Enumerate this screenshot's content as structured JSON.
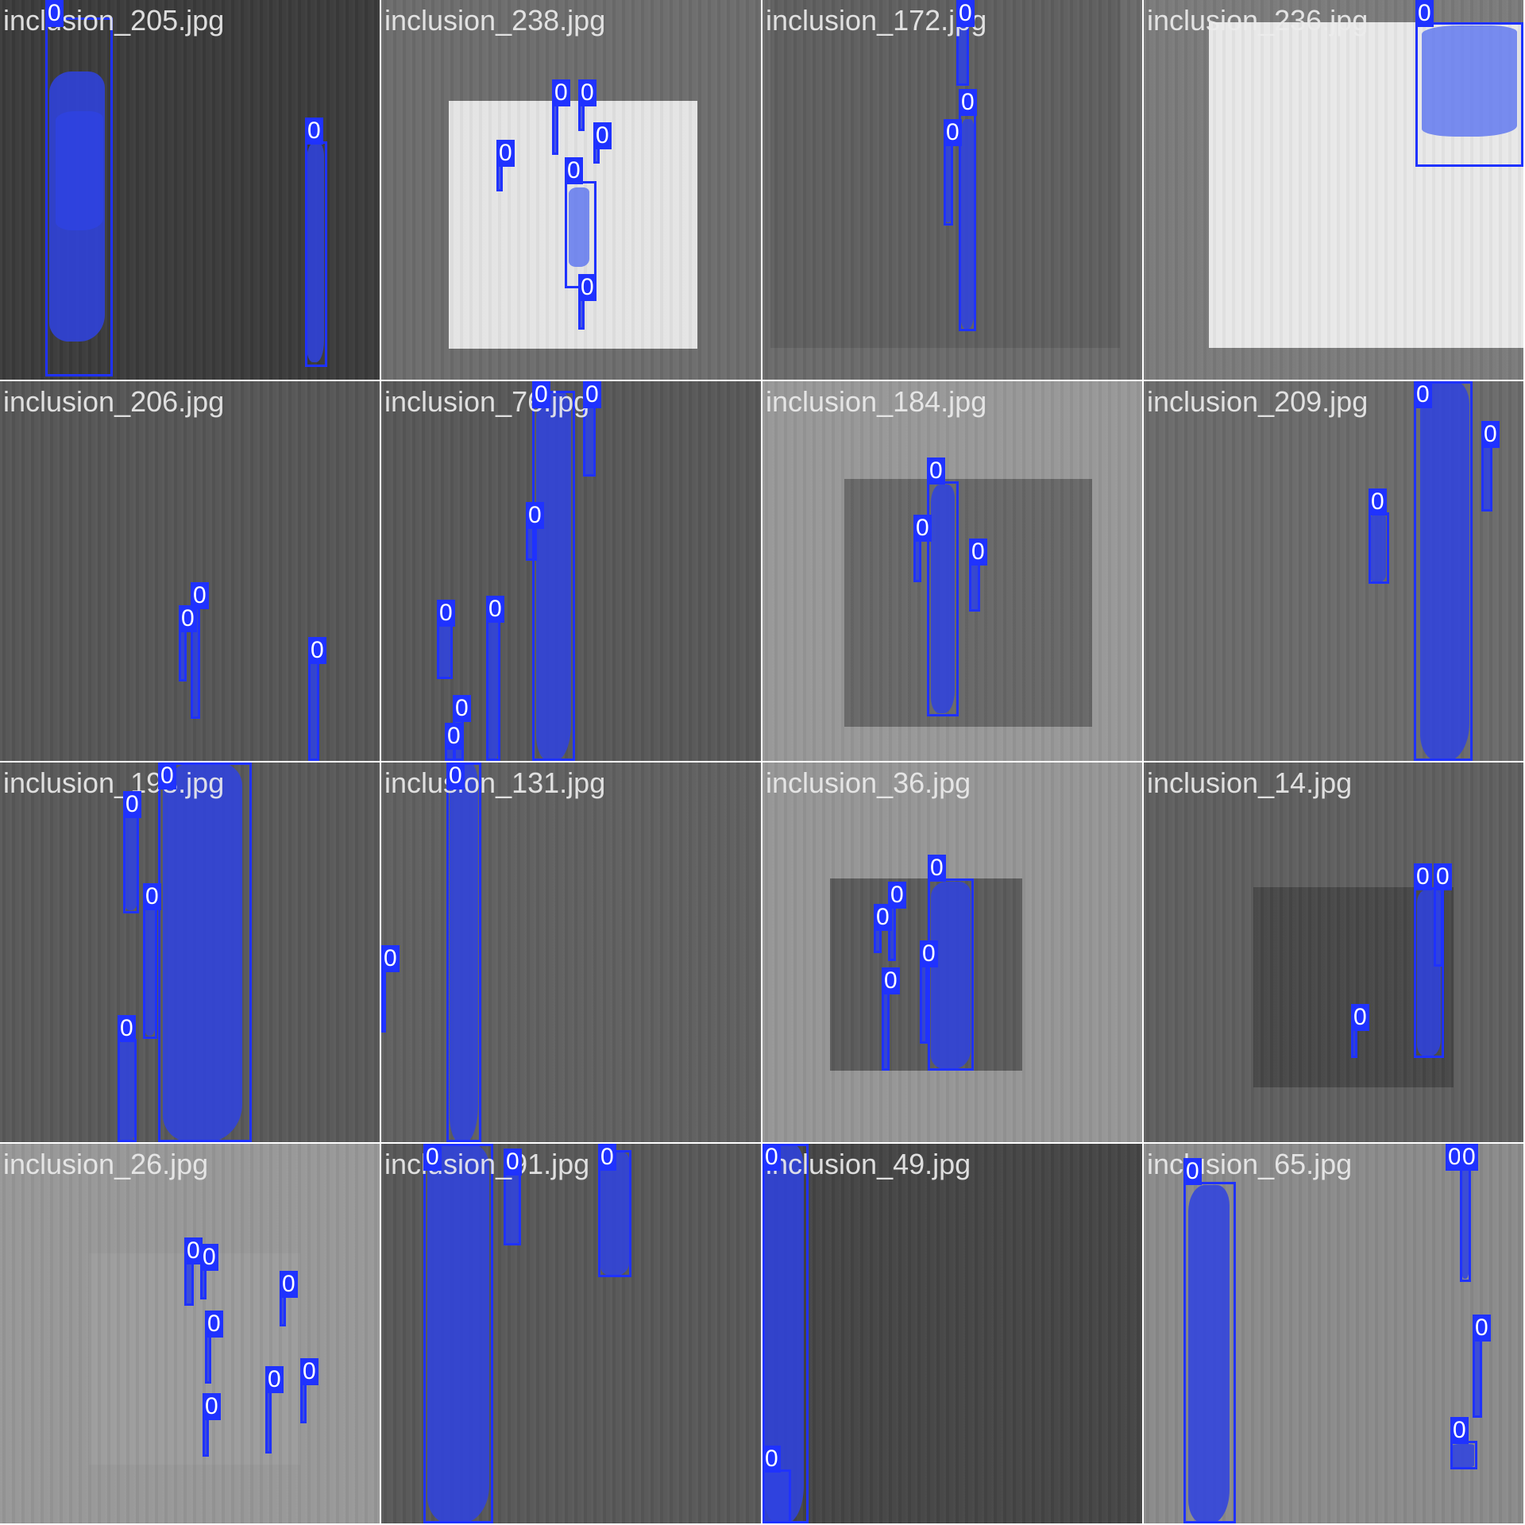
{
  "tiles": [
    {
      "name": "inclusion_205.jpg",
      "bg": "#3a3a3a",
      "inner": null,
      "dets": [
        {
          "label": "0",
          "b": [
            57,
            22,
            85,
            452
          ],
          "m": [
            [
              62,
              90,
              70,
              340
            ],
            [
              70,
              140,
              60,
              150
            ]
          ]
        },
        {
          "label": "0",
          "b": [
            384,
            178,
            28,
            284
          ],
          "m": [
            [
              386,
              180,
              22,
              276
            ]
          ]
        }
      ]
    },
    {
      "name": "inclusion_238.jpg",
      "bg": "#6c6c6c",
      "inner": {
        "r": [
          85,
          127,
          313,
          312
        ],
        "c": "#e4e4e4"
      },
      "dets": [
        {
          "label": "0",
          "b": [
            215,
            130,
            8,
            65
          ],
          "m": [
            [
              215,
              130,
              7,
              65
            ]
          ]
        },
        {
          "label": "0",
          "b": [
            248,
            130,
            8,
            35
          ],
          "m": [
            [
              248,
              130,
              7,
              35
            ]
          ]
        },
        {
          "label": "0",
          "b": [
            145,
            206,
            8,
            35
          ],
          "m": [
            [
              145,
              206,
              7,
              35
            ]
          ]
        },
        {
          "label": "0",
          "b": [
            267,
            184,
            8,
            22
          ],
          "m": [
            [
              267,
              184,
              7,
              22
            ]
          ]
        },
        {
          "label": "0",
          "b": [
            231,
            228,
            40,
            135
          ],
          "m": [
            [
              236,
              236,
              26,
              100
            ]
          ],
          "light": true
        },
        {
          "label": "0",
          "b": [
            248,
            375,
            8,
            40
          ],
          "m": [
            [
              248,
              375,
              6,
              40
            ]
          ]
        }
      ]
    },
    {
      "name": "inclusion_172.jpg",
      "bg": "#6a6a6a",
      "inner": {
        "r": [
          10,
          0,
          440,
          438
        ],
        "c": "#5e5e5e"
      },
      "dets": [
        {
          "label": "0",
          "b": [
            244,
            26,
            16,
            82
          ],
          "m": [
            [
              246,
              26,
              12,
              82
            ]
          ]
        },
        {
          "label": "0",
          "b": [
            247,
            142,
            22,
            275
          ],
          "m": [
            [
              249,
              150,
              18,
              264
            ]
          ]
        },
        {
          "label": "0",
          "b": [
            228,
            180,
            12,
            104
          ],
          "m": [
            [
              230,
              180,
              8,
              100
            ]
          ]
        }
      ]
    },
    {
      "name": "inclusion_236.jpg",
      "bg": "#7a7a7a",
      "inner": {
        "r": [
          82,
          28,
          396,
          410
        ],
        "c": "#e8e8e8"
      },
      "dets": [
        {
          "label": "0",
          "b": [
            342,
            28,
            136,
            182
          ],
          "m": [
            [
              350,
              32,
              120,
              140
            ]
          ],
          "light": true
        }
      ]
    },
    {
      "name": "inclusion_206.jpg",
      "bg": "#555555",
      "inner": null,
      "dets": [
        {
          "label": "0",
          "b": [
            240,
            283,
            12,
            142
          ],
          "m": [
            [
              242,
              285,
              8,
              140
            ]
          ]
        },
        {
          "label": "0",
          "b": [
            225,
            312,
            10,
            66
          ],
          "m": [
            [
              227,
              312,
              6,
              64
            ]
          ]
        },
        {
          "label": "0",
          "b": [
            388,
            352,
            14,
            126
          ],
          "m": [
            [
              390,
              352,
              10,
              126
            ]
          ]
        }
      ]
    },
    {
      "name": "inclusion_76.jpg",
      "bg": "#575757",
      "inner": null,
      "dets": [
        {
          "label": "0",
          "b": [
            190,
            12,
            54,
            466
          ],
          "m": [
            [
              195,
              12,
              44,
              466
            ]
          ]
        },
        {
          "label": "0",
          "b": [
            254,
            20,
            16,
            100
          ],
          "m": [
            [
              256,
              20,
              12,
              100
            ]
          ]
        },
        {
          "label": "0",
          "b": [
            182,
            182,
            14,
            44
          ],
          "m": [
            [
              184,
              182,
              10,
              44
            ]
          ]
        },
        {
          "label": "0",
          "b": [
            70,
            305,
            20,
            70
          ],
          "m": [
            [
              72,
              307,
              16,
              66
            ]
          ]
        },
        {
          "label": "0",
          "b": [
            132,
            300,
            18,
            178
          ],
          "m": [
            [
              134,
              300,
              14,
              178
            ]
          ]
        },
        {
          "label": "0",
          "b": [
            90,
            425,
            14,
            53
          ],
          "m": [
            [
              92,
              425,
              10,
              53
            ]
          ]
        },
        {
          "label": "0",
          "b": [
            80,
            460,
            14,
            18
          ],
          "m": [
            [
              82,
              460,
              10,
              18
            ]
          ]
        }
      ]
    },
    {
      "name": "inclusion_184.jpg",
      "bg": "#979797",
      "inner": {
        "r": [
          103,
          123,
          312,
          312
        ],
        "c": "#676767"
      },
      "dets": [
        {
          "label": "0",
          "b": [
            207,
            126,
            40,
            296
          ],
          "m": [
            [
              212,
              130,
              30,
              288
            ]
          ]
        },
        {
          "label": "0",
          "b": [
            190,
            198,
            10,
            55
          ],
          "m": [
            [
              192,
              198,
              6,
              55
            ]
          ]
        },
        {
          "label": "0",
          "b": [
            260,
            228,
            14,
            62
          ],
          "m": [
            [
              262,
              228,
              10,
              62
            ]
          ]
        }
      ]
    },
    {
      "name": "inclusion_209.jpg",
      "bg": "#6a6a6a",
      "inner": null,
      "dets": [
        {
          "label": "0",
          "b": [
            340,
            0,
            74,
            478
          ],
          "m": [
            [
              348,
              0,
              62,
              478
            ]
          ]
        },
        {
          "label": "0",
          "b": [
            425,
            80,
            14,
            84
          ],
          "m": [
            [
              427,
              80,
              10,
              84
            ]
          ]
        },
        {
          "label": "0",
          "b": [
            283,
            165,
            26,
            90
          ],
          "m": [
            [
              285,
              167,
              20,
              86
            ]
          ]
        }
      ]
    },
    {
      "name": "inclusion_198.jpg",
      "bg": "#585858",
      "inner": null,
      "dets": [
        {
          "label": "0",
          "b": [
            199,
            0,
            118,
            478
          ],
          "m": [
            [
              205,
              0,
              100,
              478
            ]
          ]
        },
        {
          "label": "0",
          "b": [
            155,
            66,
            20,
            124
          ],
          "m": [
            [
              157,
              66,
              16,
              120
            ]
          ]
        },
        {
          "label": "0",
          "b": [
            180,
            182,
            18,
            166
          ],
          "m": [
            [
              182,
              182,
              14,
              162
            ]
          ]
        },
        {
          "label": "0",
          "b": [
            148,
            348,
            24,
            130
          ],
          "m": [
            [
              150,
              348,
              20,
              130
            ]
          ]
        }
      ]
    },
    {
      "name": "inclusion_131.jpg",
      "bg": "#5f5f5f",
      "inner": null,
      "dets": [
        {
          "label": "0",
          "b": [
            82,
            0,
            44,
            478
          ],
          "m": [
            [
              86,
              0,
              36,
              478
            ]
          ]
        },
        {
          "label": "0",
          "b": [
            0,
            260,
            4,
            80
          ],
          "m": [
            [
              0,
              260,
              4,
              80
            ]
          ]
        }
      ]
    },
    {
      "name": "inclusion_36.jpg",
      "bg": "#959595",
      "inner": {
        "r": [
          85,
          146,
          242,
          242
        ],
        "c": "#5a5a5a"
      },
      "dets": [
        {
          "label": "0",
          "b": [
            208,
            146,
            58,
            242
          ],
          "m": [
            [
              212,
              150,
              50,
              236
            ]
          ]
        },
        {
          "label": "0",
          "b": [
            158,
            180,
            10,
            70
          ],
          "m": [
            [
              160,
              180,
              6,
              70
            ]
          ]
        },
        {
          "label": "0",
          "b": [
            140,
            208,
            10,
            32
          ],
          "m": [
            [
              142,
              208,
              6,
              32
            ]
          ]
        },
        {
          "label": "0",
          "b": [
            198,
            254,
            10,
            100
          ],
          "m": [
            [
              200,
              254,
              6,
              100
            ]
          ]
        },
        {
          "label": "0",
          "b": [
            150,
            288,
            10,
            100
          ],
          "m": [
            [
              152,
              288,
              6,
              100
            ]
          ]
        }
      ]
    },
    {
      "name": "inclusion_14.jpg",
      "bg": "#5e5e5e",
      "inner": {
        "r": [
          138,
          157,
          252,
          252
        ],
        "c": "#474747"
      },
      "dets": [
        {
          "label": "0",
          "b": [
            340,
            157,
            38,
            215
          ],
          "m": [
            [
              344,
              160,
              30,
              210
            ]
          ]
        },
        {
          "label": "0",
          "b": [
            365,
            157,
            12,
            100
          ],
          "m": [
            [
              367,
              157,
              8,
              100
            ]
          ]
        },
        {
          "label": "0",
          "b": [
            261,
            334,
            8,
            38
          ],
          "m": [
            [
              262,
              334,
              6,
              38
            ]
          ]
        }
      ]
    },
    {
      "name": "inclusion_26.jpg",
      "bg": "#979797",
      "inner": {
        "r": [
          112,
          138,
          266,
          266
        ],
        "c": "#9c9c9c"
      },
      "dets": [
        {
          "label": "0",
          "b": [
            232,
            148,
            12,
            56
          ],
          "m": [
            [
              234,
              148,
              8,
              56
            ]
          ]
        },
        {
          "label": "0",
          "b": [
            252,
            156,
            8,
            40
          ],
          "m": [
            [
              253,
              156,
              6,
              40
            ]
          ]
        },
        {
          "label": "0",
          "b": [
            352,
            190,
            8,
            40
          ],
          "m": [
            [
              353,
              190,
              6,
              40
            ]
          ]
        },
        {
          "label": "0",
          "b": [
            258,
            240,
            8,
            62
          ],
          "m": [
            [
              259,
              240,
              6,
              62
            ]
          ]
        },
        {
          "label": "0",
          "b": [
            378,
            300,
            8,
            52
          ],
          "m": [
            [
              379,
              300,
              6,
              52
            ]
          ]
        },
        {
          "label": "0",
          "b": [
            334,
            310,
            8,
            80
          ],
          "m": [
            [
              335,
              310,
              6,
              80
            ]
          ]
        },
        {
          "label": "0",
          "b": [
            255,
            344,
            8,
            50
          ],
          "m": [
            [
              256,
              344,
              6,
              50
            ]
          ]
        }
      ]
    },
    {
      "name": "inclusion_91.jpg",
      "bg": "#575757",
      "inner": null,
      "dets": [
        {
          "label": "0",
          "b": [
            53,
            0,
            88,
            478
          ],
          "m": [
            [
              58,
              0,
              78,
              478
            ]
          ]
        },
        {
          "label": "0",
          "b": [
            154,
            36,
            22,
            92
          ],
          "m": [
            [
              156,
              36,
              18,
              92
            ]
          ]
        },
        {
          "label": "0",
          "b": [
            273,
            8,
            42,
            160
          ],
          "m": [
            [
              276,
              10,
              36,
              156
            ]
          ]
        }
      ]
    },
    {
      "name": "inclusion_49.jpg",
      "bg": "#444444",
      "inner": null,
      "dets": [
        {
          "label": "0",
          "b": [
            0,
            0,
            58,
            478
          ],
          "m": [
            [
              2,
              0,
              50,
              478
            ]
          ]
        },
        {
          "label": "0",
          "b": [
            0,
            410,
            36,
            68
          ],
          "m": [
            [
              2,
              410,
              32,
              68
            ]
          ]
        }
      ]
    },
    {
      "name": "inclusion_65.jpg",
      "bg": "#8a8a8a",
      "inner": null,
      "dets": [
        {
          "label": "0",
          "b": [
            50,
            48,
            66,
            430
          ],
          "m": [
            [
              56,
              52,
              52,
              426
            ]
          ]
        },
        {
          "label": "0",
          "b": [
            380,
            0,
            14,
            25
          ],
          "m": [
            [
              382,
              0,
              10,
              25
            ]
          ]
        },
        {
          "label": "0",
          "b": [
            398,
            10,
            14,
            164
          ],
          "m": [
            [
              400,
              10,
              10,
              160
            ]
          ]
        },
        {
          "label": "0",
          "b": [
            414,
            245,
            12,
            100
          ],
          "m": [
            [
              416,
              245,
              8,
              100
            ]
          ]
        },
        {
          "label": "0",
          "b": [
            386,
            374,
            34,
            36
          ],
          "m": [
            [
              388,
              378,
              28,
              30
            ]
          ]
        }
      ]
    }
  ]
}
